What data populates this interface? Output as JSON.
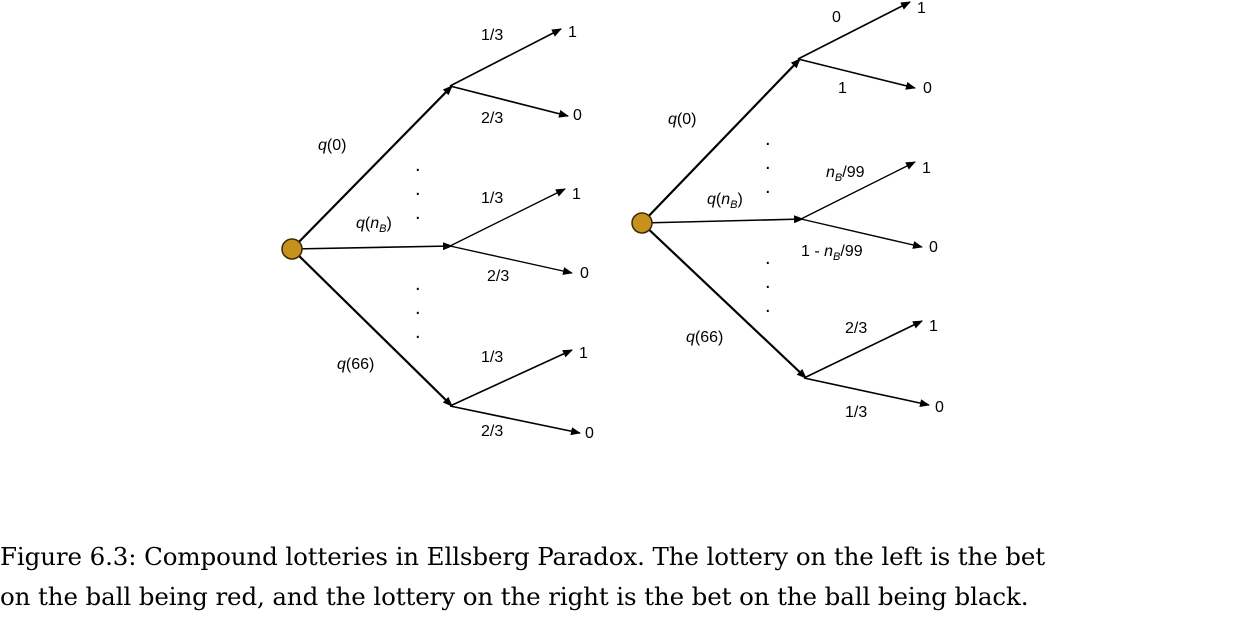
{
  "left_tree": {
    "branch_labels": {
      "top": "q(0)",
      "middle": "q(n_B)",
      "bottom": "q(66)"
    },
    "top_split": {
      "upper_prob": "1/3",
      "upper_outcome": "1",
      "lower_prob": "2/3",
      "lower_outcome": "0"
    },
    "middle_split": {
      "upper_prob": "1/3",
      "upper_outcome": "1",
      "lower_prob": "2/3",
      "lower_outcome": "0"
    },
    "bottom_split": {
      "upper_prob": "1/3",
      "upper_outcome": "1",
      "lower_prob": "2/3",
      "lower_outcome": "0"
    }
  },
  "right_tree": {
    "branch_labels": {
      "top": "q(0)",
      "middle": "q(n_B)",
      "bottom": "q(66)"
    },
    "top_split": {
      "upper_prob": "0",
      "upper_outcome": "1",
      "lower_prob": "1",
      "lower_outcome": "0"
    },
    "middle_split": {
      "upper_prob": "n_B/99",
      "upper_outcome": "1",
      "lower_prob": "1 - n_B/99",
      "lower_outcome": "0"
    },
    "bottom_split": {
      "upper_prob": "2/3",
      "upper_outcome": "1",
      "lower_prob": "1/3",
      "lower_outcome": "0"
    }
  },
  "colors": {
    "root_node_fill": "#c8901c",
    "line": "#000000"
  },
  "caption": {
    "line1": "Figure 6.3: Compound lotteries in Ellsberg Paradox. The lottery on the left is the bet",
    "line2": "on the ball being red, and the lottery on the right is the bet on the ball being black."
  }
}
